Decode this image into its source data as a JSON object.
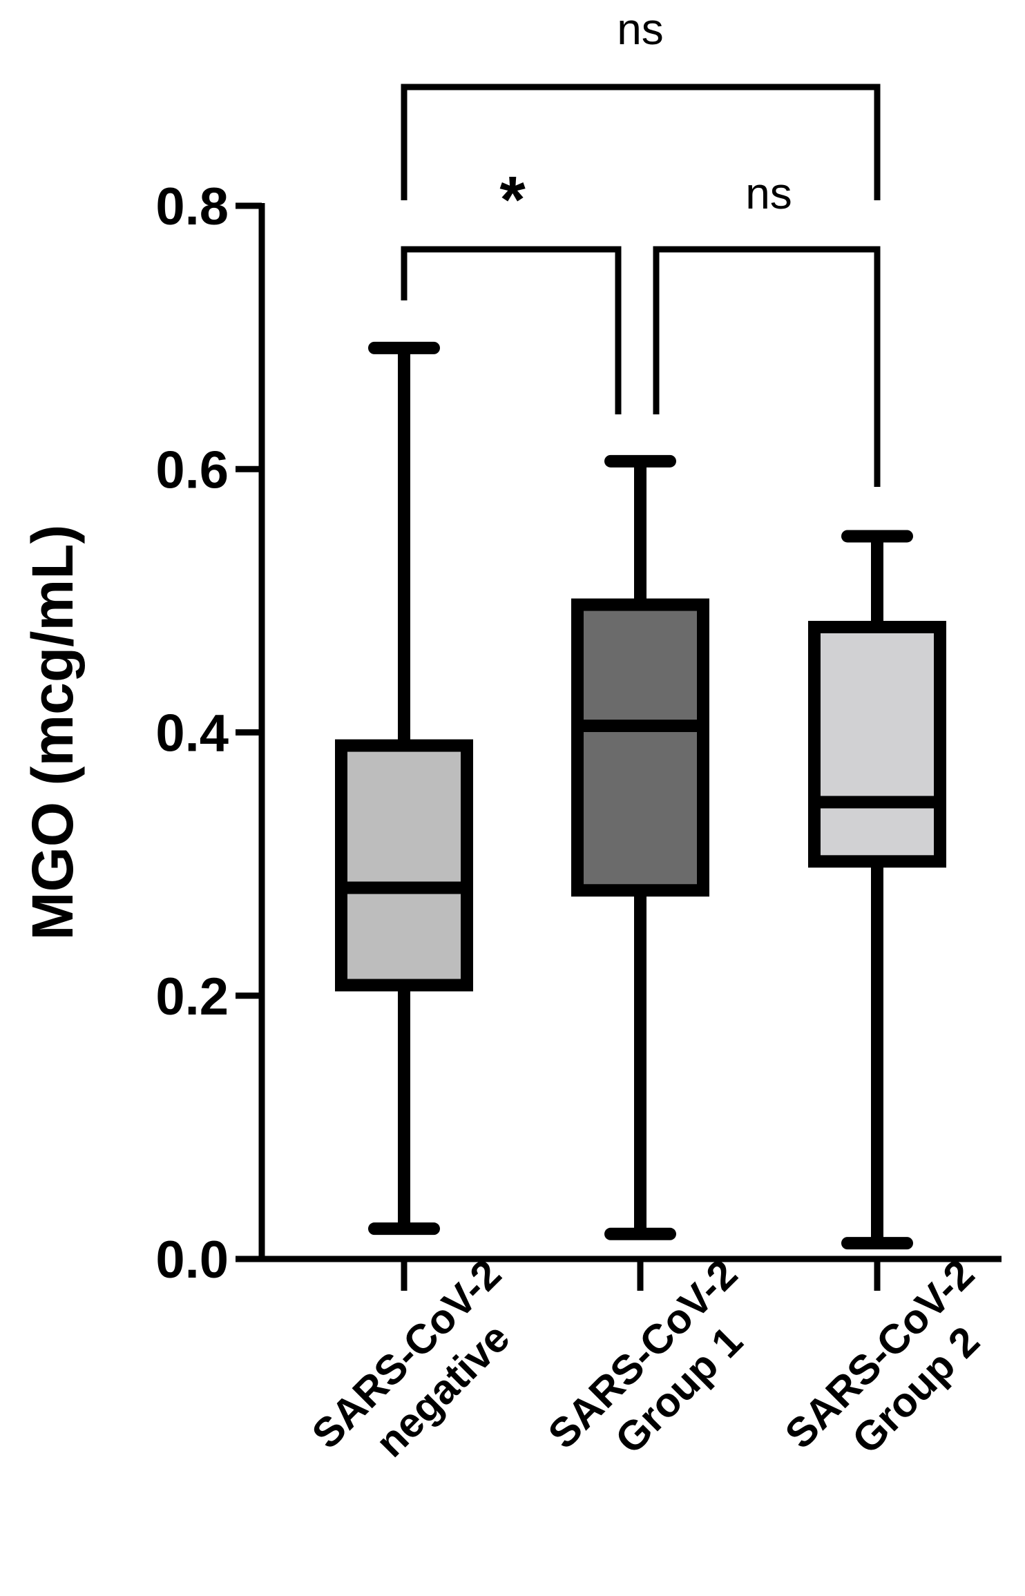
{
  "chart_data": {
    "type": "box",
    "ylabel": "MGO (mcg/mL)",
    "xlabel": "",
    "ylim": [
      0.0,
      0.8
    ],
    "yticks": [
      0.0,
      0.2,
      0.4,
      0.6,
      0.8
    ],
    "ytick_labels": [
      "0.0",
      "0.2",
      "0.4",
      "0.6",
      "0.8"
    ],
    "grid": false,
    "categories": [
      [
        "SARS-CoV-2",
        "negative"
      ],
      [
        "SARS-CoV-2",
        "Group 1"
      ],
      [
        "SARS-CoV-2",
        "Group 2"
      ]
    ],
    "boxes": [
      {
        "min": 0.023,
        "q1": 0.208,
        "median": 0.282,
        "q3": 0.39,
        "max": 0.692,
        "fill": "#bdbdbd"
      },
      {
        "min": 0.019,
        "q1": 0.28,
        "median": 0.405,
        "q3": 0.497,
        "max": 0.606,
        "fill": "#6b6b6b"
      },
      {
        "min": 0.012,
        "q1": 0.302,
        "median": 0.347,
        "q3": 0.48,
        "max": 0.549,
        "fill": "#d1d1d3"
      }
    ],
    "comparisons": [
      {
        "from": 0,
        "to": 1,
        "label": "*"
      },
      {
        "from": 1,
        "to": 2,
        "label": "ns"
      },
      {
        "from": 0,
        "to": 2,
        "label": "ns"
      }
    ]
  }
}
